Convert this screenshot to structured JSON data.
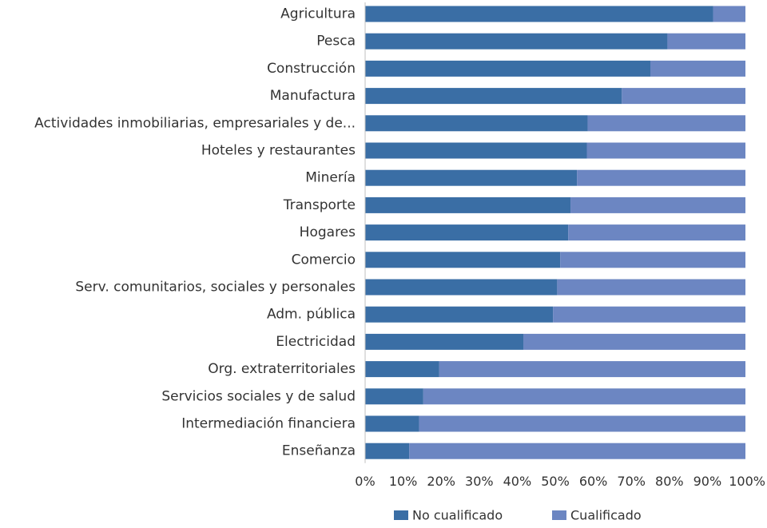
{
  "chart_data": {
    "type": "bar",
    "orientation": "horizontal",
    "stacked": true,
    "categories": [
      "Agricultura",
      "Pesca",
      "Construcción",
      "Manufactura",
      "Actividades inmobiliarias, empresariales y de...",
      "Hoteles y restaurantes",
      "Minería",
      "Transporte",
      "Hogares",
      "Comercio",
      "Serv. comunitarios, sociales y personales",
      "Adm. pública",
      "Electricidad",
      "Org. extraterritoriales",
      "Servicios sociales y de salud",
      "Intermediación financiera",
      "Enseñanza"
    ],
    "series": [
      {
        "name": "No cualificado",
        "color": "#3a6ea5",
        "values": [
          91.5,
          79.5,
          75,
          67.5,
          58.5,
          58.3,
          55.7,
          54,
          53.4,
          51.3,
          50.5,
          49.4,
          41.6,
          19.5,
          15.3,
          14.2,
          11.6
        ]
      },
      {
        "name": "Cualificado",
        "color": "#6c86c2",
        "values": [
          8.5,
          20.5,
          25,
          32.5,
          41.5,
          41.7,
          44.3,
          46,
          46.6,
          48.7,
          49.5,
          50.6,
          58.4,
          80.5,
          84.7,
          85.8,
          88.4
        ]
      }
    ],
    "xlim": [
      0,
      100
    ],
    "x_ticks": [
      "0%",
      "10%",
      "20%",
      "30%",
      "40%",
      "50%",
      "60%",
      "70%",
      "80%",
      "90%",
      "100%"
    ],
    "legend_position": "bottom",
    "grid": false
  }
}
